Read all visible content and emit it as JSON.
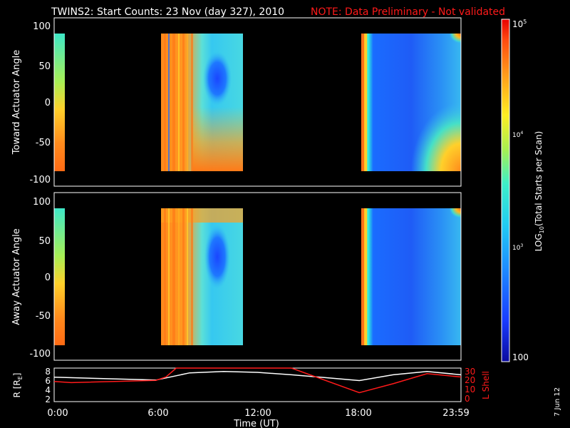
{
  "title": "TWINS2: Start Counts: 23 Nov (day 327), 2010",
  "note": "NOTE: Data Preliminary - Not validated",
  "date_stamp": "7 Jun 12",
  "colors": {
    "title": "#ffffff",
    "note": "#ff1a1a",
    "background": "#000000",
    "r_line": "#ffffff",
    "l_line": "#ff1a1a"
  },
  "chart_data": [
    {
      "type": "heatmap",
      "ylabel": "Toward Actuator Angle",
      "xlim": [
        "00:00",
        "23:59"
      ],
      "ylim": [
        -110,
        110
      ],
      "yticks": [
        100,
        50,
        0,
        -50,
        -100
      ],
      "data_intervals_hours": [
        [
          0.0,
          0.45
        ],
        [
          6.05,
          10.95
        ],
        [
          18.0,
          24.0
        ]
      ],
      "color_scale": {
        "scale": "log",
        "range": [
          100,
          100000
        ]
      }
    },
    {
      "type": "heatmap",
      "ylabel": "Away Actuator Angle",
      "xlim": [
        "00:00",
        "23:59"
      ],
      "ylim": [
        -110,
        110
      ],
      "yticks": [
        100,
        50,
        0,
        -50,
        -100
      ],
      "data_intervals_hours": [
        [
          0.0,
          0.45
        ],
        [
          6.05,
          10.95
        ],
        [
          18.0,
          24.0
        ]
      ],
      "color_scale": {
        "scale": "log",
        "range": [
          100,
          100000
        ]
      }
    },
    {
      "type": "line",
      "xlabel": "Time (UT)",
      "xticks": [
        "0:00",
        "6:00",
        "12:00",
        "18:00",
        "23:59"
      ],
      "ylabel_left": "R [R",
      "ylabel_left_sub": "E",
      "ylabel_left_end": "]",
      "ylabel_right": "L Shell",
      "ylim_left": [
        1,
        8
      ],
      "yticks_left": [
        2,
        4,
        6,
        8
      ],
      "ylim_right": [
        0,
        30
      ],
      "yticks_right": [
        0,
        10,
        20,
        30
      ],
      "series": [
        {
          "axis": "left",
          "x": [
            0,
            6,
            8,
            10,
            12,
            14,
            16,
            18,
            20,
            22,
            24
          ],
          "y": [
            6.1,
            5.5,
            7.0,
            7.3,
            7.1,
            6.6,
            6.0,
            5.4,
            6.6,
            7.3,
            6.6
          ]
        },
        {
          "axis": "right",
          "x": [
            0,
            1,
            6,
            6.6,
            7.2,
            12,
            14,
            18,
            20,
            22,
            24
          ],
          "y": [
            18,
            17,
            19,
            22,
            32,
            32,
            30,
            8,
            16,
            25,
            22
          ]
        }
      ]
    }
  ],
  "colorbar": {
    "label": "LOG",
    "label_sub": "10",
    "label_end": "(Total Starts per Scan)",
    "tick_min": "100",
    "tick_1e3_base": "10",
    "tick_1e3_exp": "3",
    "tick_1e4_base": "10",
    "tick_1e4_exp": "4",
    "tick_1e5_base": "10",
    "tick_1e5_exp": "5"
  }
}
